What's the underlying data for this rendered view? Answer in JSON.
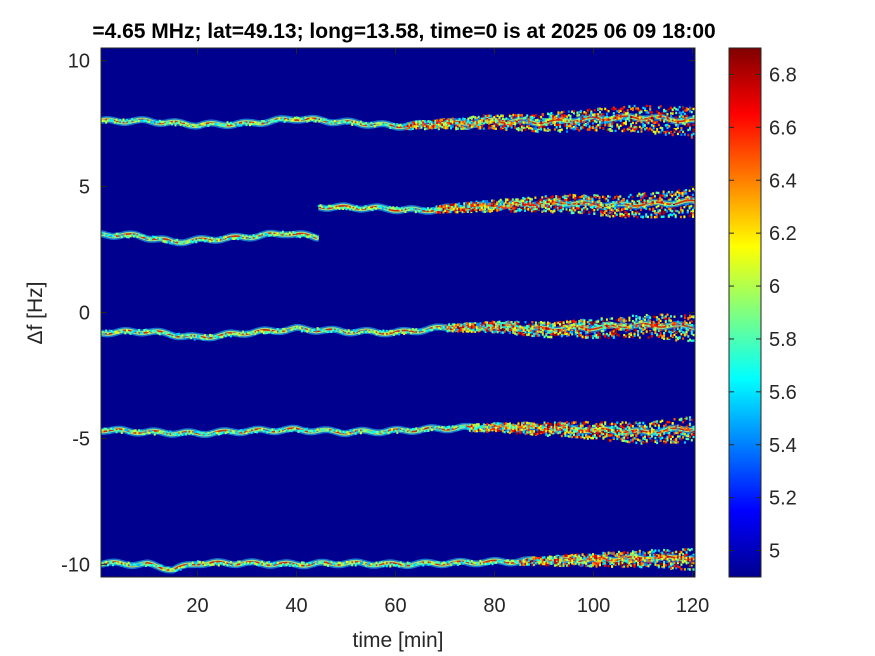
{
  "chart_data": {
    "type": "heatmap",
    "title": "=4.65 MHz;  lat=49.13; long=13.58, time=0 is at 2025 06 09 18:00",
    "xlabel": "time [min]",
    "ylabel": "Δf [Hz]",
    "xlim": [
      0.5,
      120.5
    ],
    "ylim": [
      -10.5,
      10.5
    ],
    "x_ticks": [
      20,
      40,
      60,
      80,
      100,
      120
    ],
    "y_ticks": [
      -10,
      -5,
      0,
      5,
      10
    ],
    "colormap": "jet",
    "background_color": "#00008f",
    "colorbar": {
      "ticks": [
        5,
        5.2,
        5.4,
        5.6,
        5.8,
        6,
        6.2,
        6.4,
        6.6,
        6.8
      ],
      "range": [
        4.9,
        6.9
      ]
    },
    "traces": [
      {
        "t_start": 0.5,
        "t_end": 120.5,
        "points": [
          [
            0,
            7.6
          ],
          [
            10,
            7.6
          ],
          [
            20,
            7.45
          ],
          [
            30,
            7.5
          ],
          [
            40,
            7.7
          ],
          [
            50,
            7.55
          ],
          [
            60,
            7.4
          ],
          [
            70,
            7.5
          ],
          [
            80,
            7.6
          ],
          [
            90,
            7.55
          ],
          [
            100,
            7.7
          ],
          [
            110,
            7.75
          ],
          [
            120,
            7.6
          ]
        ],
        "noise_from": 62
      },
      {
        "t_start": 44.5,
        "t_end": 120.5,
        "points": [
          [
            44,
            4.2
          ],
          [
            55,
            4.15
          ],
          [
            65,
            4.05
          ],
          [
            75,
            4.2
          ],
          [
            85,
            4.3
          ],
          [
            95,
            4.35
          ],
          [
            105,
            4.25
          ],
          [
            120,
            4.4
          ]
        ],
        "noise_from": 68
      },
      {
        "t_start": 0.5,
        "t_end": 44.5,
        "points": [
          [
            0,
            3.1
          ],
          [
            8,
            3.05
          ],
          [
            15,
            2.8
          ],
          [
            22,
            2.9
          ],
          [
            30,
            3.0
          ],
          [
            38,
            3.15
          ],
          [
            44,
            3.0
          ]
        ],
        "noise_from": 200
      },
      {
        "t_start": 0.5,
        "t_end": 120.5,
        "points": [
          [
            0,
            -0.8
          ],
          [
            10,
            -0.75
          ],
          [
            20,
            -1.0
          ],
          [
            30,
            -0.8
          ],
          [
            40,
            -0.65
          ],
          [
            50,
            -0.75
          ],
          [
            60,
            -0.8
          ],
          [
            70,
            -0.6
          ],
          [
            80,
            -0.55
          ],
          [
            90,
            -0.65
          ],
          [
            100,
            -0.6
          ],
          [
            110,
            -0.5
          ],
          [
            120,
            -0.55
          ]
        ],
        "noise_from": 70
      },
      {
        "t_start": 0.5,
        "t_end": 120.5,
        "points": [
          [
            0,
            -4.65
          ],
          [
            10,
            -4.75
          ],
          [
            20,
            -4.8
          ],
          [
            30,
            -4.7
          ],
          [
            40,
            -4.65
          ],
          [
            50,
            -4.75
          ],
          [
            60,
            -4.7
          ],
          [
            70,
            -4.6
          ],
          [
            80,
            -4.55
          ],
          [
            90,
            -4.6
          ],
          [
            100,
            -4.65
          ],
          [
            110,
            -4.75
          ],
          [
            120,
            -4.6
          ]
        ],
        "noise_from": 75
      },
      {
        "t_start": 0.5,
        "t_end": 120.5,
        "points": [
          [
            0,
            -9.95
          ],
          [
            10,
            -10.0
          ],
          [
            15,
            -10.2
          ],
          [
            20,
            -9.95
          ],
          [
            30,
            -9.95
          ],
          [
            40,
            -10.0
          ],
          [
            50,
            -9.95
          ],
          [
            60,
            -10.0
          ],
          [
            70,
            -9.95
          ],
          [
            80,
            -9.9
          ],
          [
            90,
            -9.85
          ],
          [
            100,
            -9.8
          ],
          [
            110,
            -9.75
          ],
          [
            120,
            -9.75
          ]
        ],
        "noise_from": 85
      }
    ]
  }
}
